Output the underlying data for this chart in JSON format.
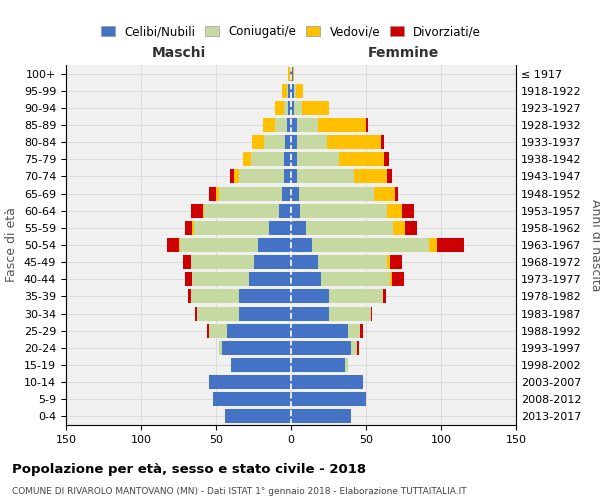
{
  "age_groups": [
    "0-4",
    "5-9",
    "10-14",
    "15-19",
    "20-24",
    "25-29",
    "30-34",
    "35-39",
    "40-44",
    "45-49",
    "50-54",
    "55-59",
    "60-64",
    "65-69",
    "70-74",
    "75-79",
    "80-84",
    "85-89",
    "90-94",
    "95-99",
    "100+"
  ],
  "birth_years": [
    "2013-2017",
    "2008-2012",
    "2003-2007",
    "1998-2002",
    "1993-1997",
    "1988-1992",
    "1983-1987",
    "1978-1982",
    "1973-1977",
    "1968-1972",
    "1963-1967",
    "1958-1962",
    "1953-1957",
    "1948-1952",
    "1943-1947",
    "1938-1942",
    "1933-1937",
    "1928-1932",
    "1923-1927",
    "1918-1922",
    "≤ 1917"
  ],
  "colors": {
    "celibi": "#4472c4",
    "coniugati": "#c5d9a0",
    "vedovi": "#ffc000",
    "divorziati": "#cc0000"
  },
  "males": {
    "celibi": [
      44,
      52,
      55,
      40,
      46,
      43,
      35,
      35,
      28,
      25,
      22,
      15,
      8,
      6,
      5,
      5,
      4,
      3,
      2,
      2,
      1
    ],
    "coniugati": [
      0,
      0,
      0,
      0,
      2,
      12,
      28,
      32,
      38,
      42,
      52,
      50,
      50,
      42,
      30,
      22,
      14,
      8,
      3,
      1,
      0
    ],
    "vedovi": [
      0,
      0,
      0,
      0,
      0,
      0,
      0,
      0,
      0,
      0,
      1,
      1,
      1,
      2,
      3,
      5,
      8,
      8,
      6,
      3,
      1
    ],
    "divorziati": [
      0,
      0,
      0,
      0,
      0,
      1,
      1,
      2,
      5,
      5,
      8,
      5,
      8,
      5,
      3,
      0,
      0,
      0,
      0,
      0,
      0
    ]
  },
  "females": {
    "nubili": [
      40,
      50,
      48,
      36,
      40,
      38,
      25,
      25,
      20,
      18,
      14,
      10,
      6,
      5,
      4,
      4,
      4,
      4,
      2,
      2,
      1
    ],
    "coniugati": [
      0,
      0,
      0,
      2,
      4,
      8,
      28,
      36,
      46,
      46,
      78,
      58,
      58,
      50,
      38,
      28,
      20,
      14,
      5,
      1,
      0
    ],
    "vedovi": [
      0,
      0,
      0,
      0,
      0,
      0,
      0,
      0,
      1,
      2,
      5,
      8,
      10,
      14,
      22,
      30,
      36,
      32,
      18,
      5,
      1
    ],
    "divorziati": [
      0,
      0,
      0,
      0,
      1,
      2,
      1,
      2,
      8,
      8,
      18,
      8,
      8,
      2,
      3,
      3,
      2,
      1,
      0,
      0,
      0
    ]
  },
  "title": "Popolazione per età, sesso e stato civile - 2018",
  "subtitle": "COMUNE DI RIVAROLO MANTOVANO (MN) - Dati ISTAT 1° gennaio 2018 - Elaborazione TUTTAITALIA.IT",
  "xlabel_left": "Maschi",
  "xlabel_right": "Femmine",
  "ylabel": "Fasce di età",
  "ylabel_right": "Anni di nascita",
  "legend_labels": [
    "Celibi/Nubili",
    "Coniugati/e",
    "Vedovi/e",
    "Divorziati/e"
  ],
  "xlim": 150,
  "background_color": "#ffffff",
  "plot_bg_color": "#f0f0f0",
  "grid_color": "#d8d8d8"
}
